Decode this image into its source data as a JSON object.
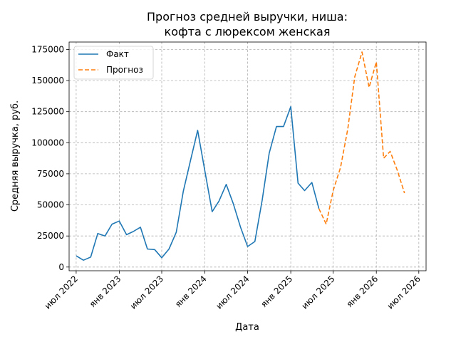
{
  "chart_data": {
    "type": "line",
    "title": [
      "Прогноз средней выручки, ниша:",
      "кофта с люрексом женская"
    ],
    "xlabel": "Дата",
    "ylabel": "Средняя выручка, руб.",
    "grid": true,
    "legend_position": "top-left",
    "colors": {
      "fact": "#1f77b4",
      "forecast": "#ff7f0e"
    },
    "xlim": [
      "2022-06-01",
      "2026-08-01"
    ],
    "ylim": [
      -3000,
      181000
    ],
    "y_ticks": [
      0,
      25000,
      50000,
      75000,
      100000,
      125000,
      150000,
      175000
    ],
    "x_ticks": [
      {
        "date": "2022-07-01",
        "label": "июл 2022"
      },
      {
        "date": "2023-01-01",
        "label": "янв 2023"
      },
      {
        "date": "2023-07-01",
        "label": "июл 2023"
      },
      {
        "date": "2024-01-01",
        "label": "янв 2024"
      },
      {
        "date": "2024-07-01",
        "label": "июл 2024"
      },
      {
        "date": "2025-01-01",
        "label": "янв 2025"
      },
      {
        "date": "2025-07-01",
        "label": "июл 2025"
      },
      {
        "date": "2026-01-01",
        "label": "янв 2026"
      },
      {
        "date": "2026-07-01",
        "label": "июл 2026"
      }
    ],
    "series": [
      {
        "name": "Факт",
        "style": "solid",
        "points": [
          [
            "2022-07-01",
            9000
          ],
          [
            "2022-08-01",
            5500
          ],
          [
            "2022-09-01",
            8000
          ],
          [
            "2022-10-01",
            27000
          ],
          [
            "2022-11-01",
            25000
          ],
          [
            "2022-12-01",
            34500
          ],
          [
            "2023-01-01",
            37000
          ],
          [
            "2023-02-01",
            26000
          ],
          [
            "2023-03-01",
            28500
          ],
          [
            "2023-04-01",
            32000
          ],
          [
            "2023-05-01",
            14500
          ],
          [
            "2023-06-01",
            14000
          ],
          [
            "2023-07-01",
            7500
          ],
          [
            "2023-08-01",
            14500
          ],
          [
            "2023-09-01",
            28000
          ],
          [
            "2023-10-01",
            61000
          ],
          [
            "2023-11-01",
            86000
          ],
          [
            "2023-12-01",
            110000
          ],
          [
            "2024-01-01",
            77000
          ],
          [
            "2024-02-01",
            44500
          ],
          [
            "2024-03-01",
            53000
          ],
          [
            "2024-04-01",
            66500
          ],
          [
            "2024-05-01",
            51000
          ],
          [
            "2024-06-01",
            32000
          ],
          [
            "2024-07-01",
            16500
          ],
          [
            "2024-08-01",
            20500
          ],
          [
            "2024-09-01",
            53500
          ],
          [
            "2024-10-01",
            91500
          ],
          [
            "2024-11-01",
            113000
          ],
          [
            "2024-12-01",
            113000
          ],
          [
            "2025-01-01",
            129000
          ],
          [
            "2025-02-01",
            67500
          ],
          [
            "2025-03-01",
            61500
          ],
          [
            "2025-04-01",
            68000
          ],
          [
            "2025-05-01",
            47000
          ]
        ]
      },
      {
        "name": "Прогноз",
        "style": "dashed",
        "points": [
          [
            "2025-05-01",
            47000
          ],
          [
            "2025-06-01",
            34500
          ],
          [
            "2025-07-01",
            61500
          ],
          [
            "2025-08-01",
            80000
          ],
          [
            "2025-09-01",
            111000
          ],
          [
            "2025-10-01",
            153000
          ],
          [
            "2025-11-01",
            173000
          ],
          [
            "2025-12-01",
            144500
          ],
          [
            "2026-01-01",
            165000
          ],
          [
            "2026-02-01",
            87500
          ],
          [
            "2026-03-01",
            93000
          ],
          [
            "2026-04-01",
            77500
          ],
          [
            "2026-05-01",
            59500
          ]
        ]
      }
    ]
  }
}
